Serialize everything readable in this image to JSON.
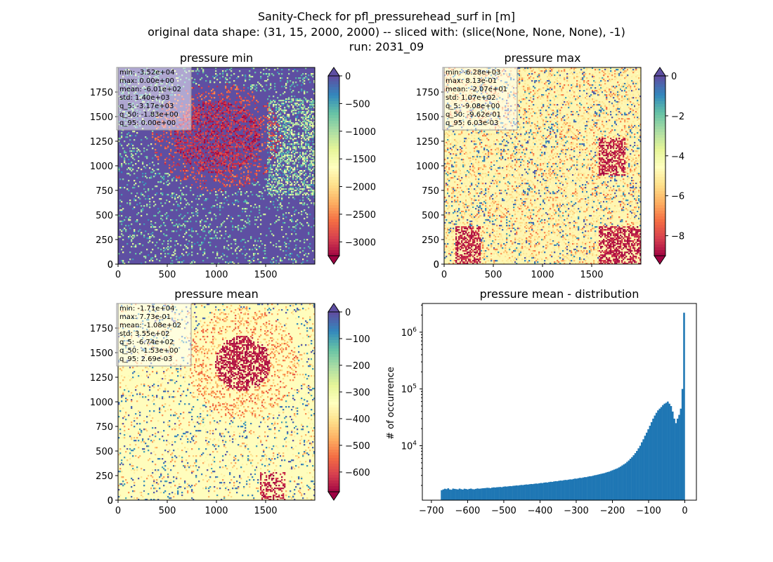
{
  "figure": {
    "title_lines": [
      "Sanity-Check for pfl_pressurehead_surf in [m]",
      "original data shape: (31, 15, 2000, 2000) -- sliced with: (slice(None, None, None), -1)",
      "run: 2031_09"
    ]
  },
  "colormaps": {
    "spectral": [
      "#9e0142",
      "#d53e4f",
      "#f46d43",
      "#fdae61",
      "#fee08b",
      "#ffffbf",
      "#e6f598",
      "#abdda4",
      "#66c2a5",
      "#3288bd",
      "#5e4fa2"
    ],
    "hist_color": "#1f77b4"
  },
  "chart_data": [
    {
      "type": "heatmap",
      "title": "pressure min",
      "xlim": [
        0,
        2000
      ],
      "ylim": [
        0,
        2000
      ],
      "xticks": [
        0,
        500,
        1000,
        1500
      ],
      "yticks": [
        0,
        250,
        500,
        750,
        1000,
        1250,
        1500,
        1750
      ],
      "colorbar": {
        "min": -3250,
        "max": 0,
        "ticks": [
          0,
          -500,
          -1000,
          -1500,
          -2000,
          -2500,
          -3000
        ],
        "extend_top": true,
        "extend_bottom": true,
        "colormap": "Spectral"
      },
      "stats": [
        "min: -3.52e+04",
        "max: 0.00e+00",
        "mean: -6.01e+02",
        "std: 1.40e+03",
        "q_5: -3.17e+03",
        "q_50: -1.83e+00",
        "q_95: 0.00e+00"
      ],
      "dominant_color": "#5e4fa2"
    },
    {
      "type": "heatmap",
      "title": "pressure max",
      "xlim": [
        0,
        2000
      ],
      "ylim": [
        0,
        2000
      ],
      "xticks": [
        0,
        500,
        1000,
        1500
      ],
      "yticks": [
        0,
        250,
        500,
        750,
        1000,
        1250,
        1500,
        1750
      ],
      "colorbar": {
        "min": -9,
        "max": 0,
        "ticks": [
          0,
          -2,
          -4,
          -6,
          -8
        ],
        "extend_top": true,
        "extend_bottom": true,
        "colormap": "Spectral"
      },
      "stats": [
        "min: -6.28e+03",
        "max: 8.13e-01",
        "mean: -2.07e+01",
        "std: 1.07e+02",
        "q_5: -9.08e+00",
        "q_50: -9.62e-01",
        "q_95: 6.03e-03"
      ],
      "dominant_color": "#fef6b2"
    },
    {
      "type": "heatmap",
      "title": "pressure mean",
      "xlim": [
        0,
        2000
      ],
      "ylim": [
        0,
        2000
      ],
      "xticks": [
        0,
        500,
        1000,
        1500
      ],
      "yticks": [
        0,
        250,
        500,
        750,
        1000,
        1250,
        1500,
        1750
      ],
      "colorbar": {
        "min": -674,
        "max": 0,
        "ticks": [
          0,
          -100,
          -200,
          -300,
          -400,
          -500,
          -600
        ],
        "extend_top": true,
        "extend_bottom": true,
        "colormap": "Spectral"
      },
      "stats": [
        "min: -1.71e+04",
        "max: 7.73e-01",
        "mean: -1.08e+02",
        "std: 3.55e+02",
        "q_5: -6.74e+02",
        "q_50: -1.53e+00",
        "q_95: 2.69e-03"
      ],
      "dominant_color": "#fffdbd"
    },
    {
      "type": "bar",
      "title": "pressure mean - distribution",
      "xlabel": "",
      "ylabel": "# of occurrence",
      "xlim": [
        -725,
        32
      ],
      "ylim": [
        1100,
        3200000
      ],
      "log_y": true,
      "xticks": [
        -700,
        -600,
        -500,
        -400,
        -300,
        -200,
        -100,
        0
      ],
      "yticks": [
        10000,
        100000,
        1000000
      ],
      "ytick_labels": [
        "10^4",
        "10^5",
        "10^6"
      ],
      "bins": [
        -674,
        0
      ],
      "bin_count": 150,
      "counts": [
        1650,
        1700,
        1750,
        1720,
        1780,
        1700,
        1680,
        1760,
        1740,
        1720,
        1700,
        1760,
        1720,
        1690,
        1750,
        1730,
        1700,
        1740,
        1760,
        1720,
        1710,
        1740,
        1770,
        1750,
        1760,
        1780,
        1790,
        1800,
        1820,
        1810,
        1790,
        1830,
        1850,
        1840,
        1860,
        1870,
        1880,
        1860,
        1900,
        1920,
        1910,
        1930,
        1950,
        1940,
        1970,
        1980,
        2000,
        1990,
        2020,
        2040,
        2030,
        2060,
        2080,
        2070,
        2100,
        2120,
        2110,
        2140,
        2160,
        2150,
        2180,
        2210,
        2200,
        2240,
        2260,
        2250,
        2290,
        2320,
        2310,
        2350,
        2380,
        2370,
        2410,
        2440,
        2430,
        2470,
        2500,
        2490,
        2530,
        2560,
        2550,
        2600,
        2640,
        2630,
        2680,
        2720,
        2710,
        2760,
        2800,
        2800,
        2860,
        2900,
        2910,
        2960,
        3020,
        3050,
        3100,
        3150,
        3200,
        3250,
        3300,
        3370,
        3450,
        3500,
        3600,
        3700,
        3800,
        3900,
        4000,
        4150,
        4300,
        4500,
        4700,
        4900,
        5200,
        5500,
        5900,
        6300,
        6800,
        7400,
        8100,
        9000,
        10000,
        11500,
        13000,
        15000,
        17000,
        19500,
        22500,
        26000,
        30000,
        34000,
        38000,
        42000,
        45000,
        48000,
        52000,
        55000,
        57000,
        60000,
        55000,
        50000,
        40000,
        30000,
        25000,
        30000,
        35000,
        45000,
        100000,
        2200000
      ]
    }
  ]
}
